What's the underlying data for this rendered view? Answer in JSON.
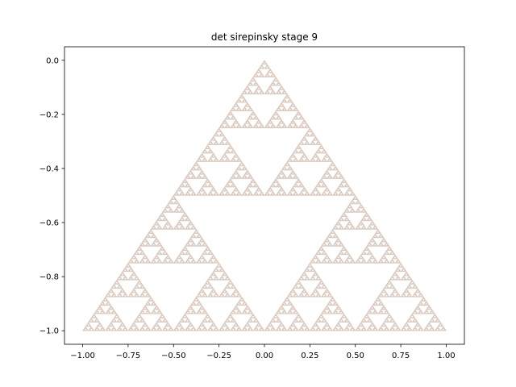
{
  "chart_data": {
    "type": "line",
    "title": "det sirepinsky stage 9",
    "xlabel": "",
    "ylabel": "",
    "xlim": [
      -1.1,
      1.1
    ],
    "ylim": [
      -1.05,
      0.05
    ],
    "xticks": [
      -1.0,
      -0.75,
      -0.5,
      -0.25,
      0.0,
      0.25,
      0.5,
      0.75,
      1.0
    ],
    "xtick_labels": [
      "−1.00",
      "−0.75",
      "−0.50",
      "−0.25",
      "0.00",
      "0.25",
      "0.50",
      "0.75",
      "1.00"
    ],
    "yticks": [
      0.0,
      -0.2,
      -0.4,
      -0.6,
      -0.8,
      -1.0
    ],
    "ytick_labels": [
      "0.0",
      "−0.2",
      "−0.4",
      "−0.6",
      "−0.8",
      "−1.0"
    ],
    "grid": false,
    "fractal": {
      "name": "sierpinski triangle",
      "stage": 9,
      "vertices": [
        [
          0.0,
          0.0
        ],
        [
          -1.0,
          -1.0
        ],
        [
          1.0,
          -1.0
        ]
      ]
    },
    "colors": {
      "edge": "#d9c9bf",
      "edge_alt": "#b9b9b9",
      "axes": "#000000",
      "background": "#ffffff"
    }
  }
}
